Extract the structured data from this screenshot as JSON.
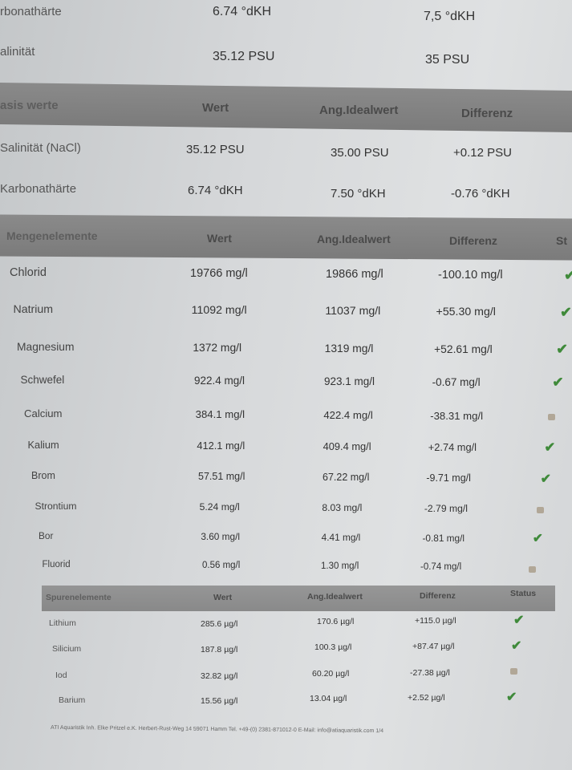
{
  "top_rows": [
    {
      "label": "rbonathärte",
      "wert": "6.74 °dKH",
      "ideal": "7,5 °dKH"
    },
    {
      "label": "alinität",
      "wert": "35.12 PSU",
      "ideal": "35 PSU"
    }
  ],
  "basis": {
    "headers": [
      "asis werte",
      "Wert",
      "Ang.Idealwert",
      "Differenz"
    ],
    "rows": [
      {
        "name": "Salinität (NaCl)",
        "wert": "35.12 PSU",
        "ideal": "35.00 PSU",
        "diff": "+0.12 PSU"
      },
      {
        "name": "Karbonathärte",
        "wert": "6.74 °dKH",
        "ideal": "7.50 °dKH",
        "diff": "-0.76 °dKH"
      }
    ]
  },
  "mengen": {
    "headers": [
      "Mengenelemente",
      "Wert",
      "Ang.Idealwert",
      "Differenz",
      "St"
    ],
    "rows": [
      {
        "name": "Chlorid",
        "wert": "19766 mg/l",
        "ideal": "19866 mg/l",
        "diff": "-100.10 mg/l",
        "status": "ok"
      },
      {
        "name": "Natrium",
        "wert": "11092 mg/l",
        "ideal": "11037 mg/l",
        "diff": "+55.30 mg/l",
        "status": "ok"
      },
      {
        "name": "Magnesium",
        "wert": "1372 mg/l",
        "ideal": "1319 mg/l",
        "diff": "+52.61 mg/l",
        "status": "ok"
      },
      {
        "name": "Schwefel",
        "wert": "922.4 mg/l",
        "ideal": "923.1 mg/l",
        "diff": "-0.67 mg/l",
        "status": "ok"
      },
      {
        "name": "Calcium",
        "wert": "384.1 mg/l",
        "ideal": "422.4 mg/l",
        "diff": "-38.31 mg/l",
        "status": "warn"
      },
      {
        "name": "Kalium",
        "wert": "412.1 mg/l",
        "ideal": "409.4 mg/l",
        "diff": "+2.74 mg/l",
        "status": "ok"
      },
      {
        "name": "Brom",
        "wert": "57.51 mg/l",
        "ideal": "67.22 mg/l",
        "diff": "-9.71 mg/l",
        "status": "ok"
      },
      {
        "name": "Strontium",
        "wert": "5.24 mg/l",
        "ideal": "8.03 mg/l",
        "diff": "-2.79 mg/l",
        "status": "warn"
      },
      {
        "name": "Bor",
        "wert": "3.60 mg/l",
        "ideal": "4.41 mg/l",
        "diff": "-0.81 mg/l",
        "status": "ok"
      },
      {
        "name": "Fluorid",
        "wert": "0.56 mg/l",
        "ideal": "1.30 mg/l",
        "diff": "-0.74 mg/l",
        "status": "warn"
      }
    ]
  },
  "spuren": {
    "headers": [
      "Spurenelemente",
      "Wert",
      "Ang.Idealwert",
      "Differenz",
      "Status"
    ],
    "rows": [
      {
        "name": "Lithium",
        "wert": "285.6 µg/l",
        "ideal": "170.6 µg/l",
        "diff": "+115.0 µg/l",
        "status": "ok"
      },
      {
        "name": "Silicium",
        "wert": "187.8 µg/l",
        "ideal": "100.3 µg/l",
        "diff": "+87.47 µg/l",
        "status": "ok"
      },
      {
        "name": "Iod",
        "wert": "32.82 µg/l",
        "ideal": "60.20 µg/l",
        "diff": "-27.38 µg/l",
        "status": "warn"
      },
      {
        "name": "Barium",
        "wert": "15.56 µg/l",
        "ideal": "13.04 µg/l",
        "diff": "+2.52 µg/l",
        "status": "ok"
      }
    ]
  },
  "status_icons": {
    "ok": "checkmark-icon",
    "warn": "warning-mark-icon"
  },
  "colors": {
    "ok": "#3f8a3a",
    "warn": "#a89a86",
    "header_band": "#808080"
  },
  "footer": "ATI Aquaristik Inh. Elke Pritzel e.K. Herbert-Rust-Weg 14 59071 Hamm Tel. +49-(0) 2381-871012-0 E-Mail: info@atiaquaristik.com   1/4"
}
